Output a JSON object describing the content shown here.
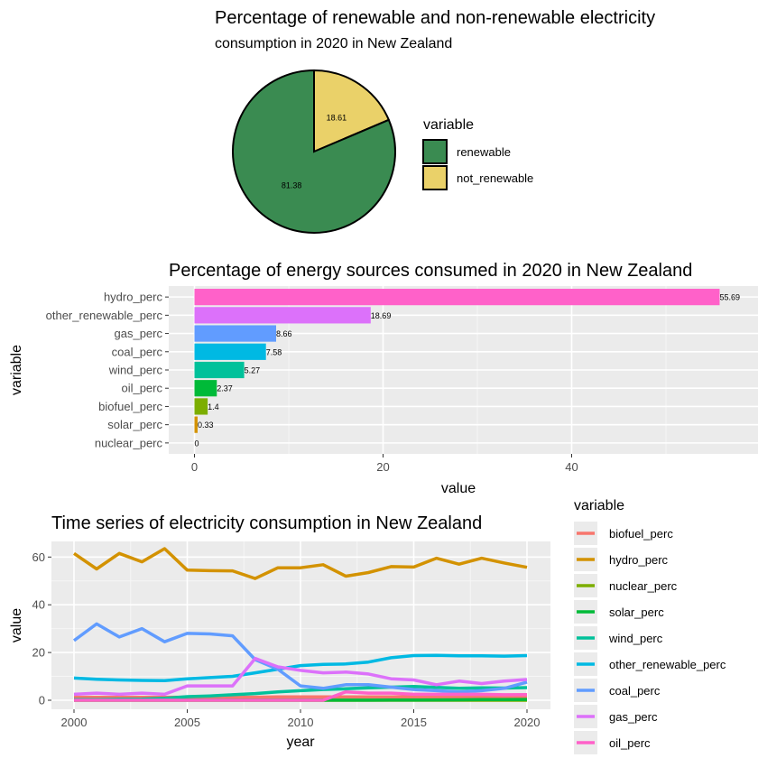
{
  "chart_data": [
    {
      "type": "pie",
      "title": "Percentage of renewable and non-renewable electricity",
      "subtitle": "consumption in 2020 in New Zealand",
      "legend_title": "variable",
      "legend_position": "right",
      "slices": [
        {
          "label": "renewable",
          "value": 81.38,
          "color": "#3a8b51"
        },
        {
          "label": "not_renewable",
          "value": 18.61,
          "color": "#ead169"
        }
      ]
    },
    {
      "type": "bar",
      "orientation": "horizontal",
      "title": "Percentage of energy sources consumed in 2020 in New Zealand",
      "xlabel": "value",
      "ylabel": "variable",
      "xlim": [
        0,
        58
      ],
      "xticks": [
        0,
        20,
        40
      ],
      "categories": [
        "hydro_perc",
        "other_renewable_perc",
        "gas_perc",
        "coal_perc",
        "wind_perc",
        "oil_perc",
        "biofuel_perc",
        "solar_perc",
        "nuclear_perc"
      ],
      "values": [
        55.69,
        18.69,
        8.66,
        7.58,
        5.27,
        2.37,
        1.4,
        0.33,
        0
      ],
      "value_labels": [
        "55.69",
        "18.69",
        "8.66",
        "7.58",
        "5.27",
        "2.37",
        "1.4",
        "0.33",
        "0"
      ],
      "colors": [
        "#ff61c9",
        "#dc71fa",
        "#619cff",
        "#00b9e3",
        "#00c19a",
        "#00ba38",
        "#7cae00",
        "#d39200",
        "#f8766d"
      ],
      "grid": true
    },
    {
      "type": "line",
      "title": "Time series of electricity consumption in New Zealand",
      "xlabel": "year",
      "ylabel": "value",
      "xlim": [
        2000,
        2020
      ],
      "ylim": [
        0,
        65
      ],
      "xticks": [
        2000,
        2005,
        2010,
        2015,
        2020
      ],
      "yticks": [
        0,
        20,
        40,
        60
      ],
      "legend_title": "variable",
      "legend_position": "right",
      "grid": true,
      "x": [
        2000,
        2001,
        2002,
        2003,
        2004,
        2005,
        2006,
        2007,
        2008,
        2009,
        2010,
        2011,
        2012,
        2013,
        2014,
        2015,
        2016,
        2017,
        2018,
        2019,
        2020
      ],
      "series": [
        {
          "name": "biofuel_perc",
          "color": "#f8766d",
          "values": [
            1.2,
            1.2,
            1.2,
            1.2,
            1.2,
            1.3,
            1.3,
            1.3,
            1.3,
            1.4,
            1.4,
            1.4,
            1.4,
            1.4,
            1.4,
            1.4,
            1.4,
            1.4,
            1.4,
            1.4,
            1.4
          ]
        },
        {
          "name": "hydro_perc",
          "color": "#d39200",
          "values": [
            61.5,
            55.0,
            61.5,
            58.0,
            63.5,
            54.5,
            54.3,
            54.2,
            51.0,
            55.5,
            55.5,
            56.8,
            52.0,
            53.5,
            56.0,
            55.8,
            59.5,
            57.0,
            59.5,
            57.5,
            55.7
          ]
        },
        {
          "name": "nuclear_perc",
          "color": "#7cae00",
          "values": [
            0,
            0,
            0,
            0,
            0,
            0,
            0,
            0,
            0,
            0,
            0,
            0,
            0,
            0,
            0,
            0,
            0,
            0,
            0,
            0,
            0
          ]
        },
        {
          "name": "solar_perc",
          "color": "#00ba38",
          "values": [
            0.05,
            0.05,
            0.05,
            0.05,
            0.05,
            0.05,
            0.05,
            0.05,
            0.05,
            0.05,
            0.05,
            0.05,
            0.05,
            0.05,
            0.1,
            0.1,
            0.15,
            0.2,
            0.25,
            0.3,
            0.33
          ]
        },
        {
          "name": "wind_perc",
          "color": "#00c19a",
          "values": [
            0.3,
            0.3,
            0.4,
            0.5,
            0.8,
            1.5,
            1.8,
            2.3,
            2.8,
            3.5,
            4.0,
            4.5,
            4.8,
            5.2,
            5.5,
            5.8,
            5.4,
            5.0,
            5.2,
            5.1,
            5.3
          ]
        },
        {
          "name": "other_renewable_perc",
          "color": "#00b9e3",
          "values": [
            9.3,
            8.8,
            8.5,
            8.3,
            8.2,
            9.0,
            9.5,
            10.0,
            11.5,
            13.0,
            14.5,
            15.0,
            15.2,
            16.0,
            17.8,
            18.7,
            18.8,
            18.6,
            18.6,
            18.5,
            18.7
          ]
        },
        {
          "name": "coal_perc",
          "color": "#619cff",
          "values": [
            25.0,
            32.0,
            26.5,
            30.0,
            24.5,
            28.0,
            27.8,
            27.0,
            17.0,
            13.0,
            6.0,
            5.0,
            6.5,
            6.5,
            5.5,
            4.5,
            4.0,
            3.5,
            4.0,
            5.0,
            7.6
          ]
        },
        {
          "name": "gas_perc",
          "color": "#dc71fa",
          "values": [
            2.5,
            3.0,
            2.5,
            3.0,
            2.5,
            6.0,
            6.0,
            6.0,
            17.5,
            14.0,
            12.5,
            11.5,
            11.8,
            11.0,
            9.0,
            8.5,
            6.5,
            8.0,
            7.0,
            8.0,
            8.7
          ]
        },
        {
          "name": "oil_perc",
          "color": "#ff61c9",
          "values": [
            0,
            0,
            0,
            0,
            0,
            0,
            0,
            0,
            0,
            0,
            0,
            0,
            3.5,
            3.0,
            3.0,
            2.5,
            2.5,
            2.5,
            2.5,
            2.3,
            2.4
          ]
        }
      ]
    }
  ]
}
